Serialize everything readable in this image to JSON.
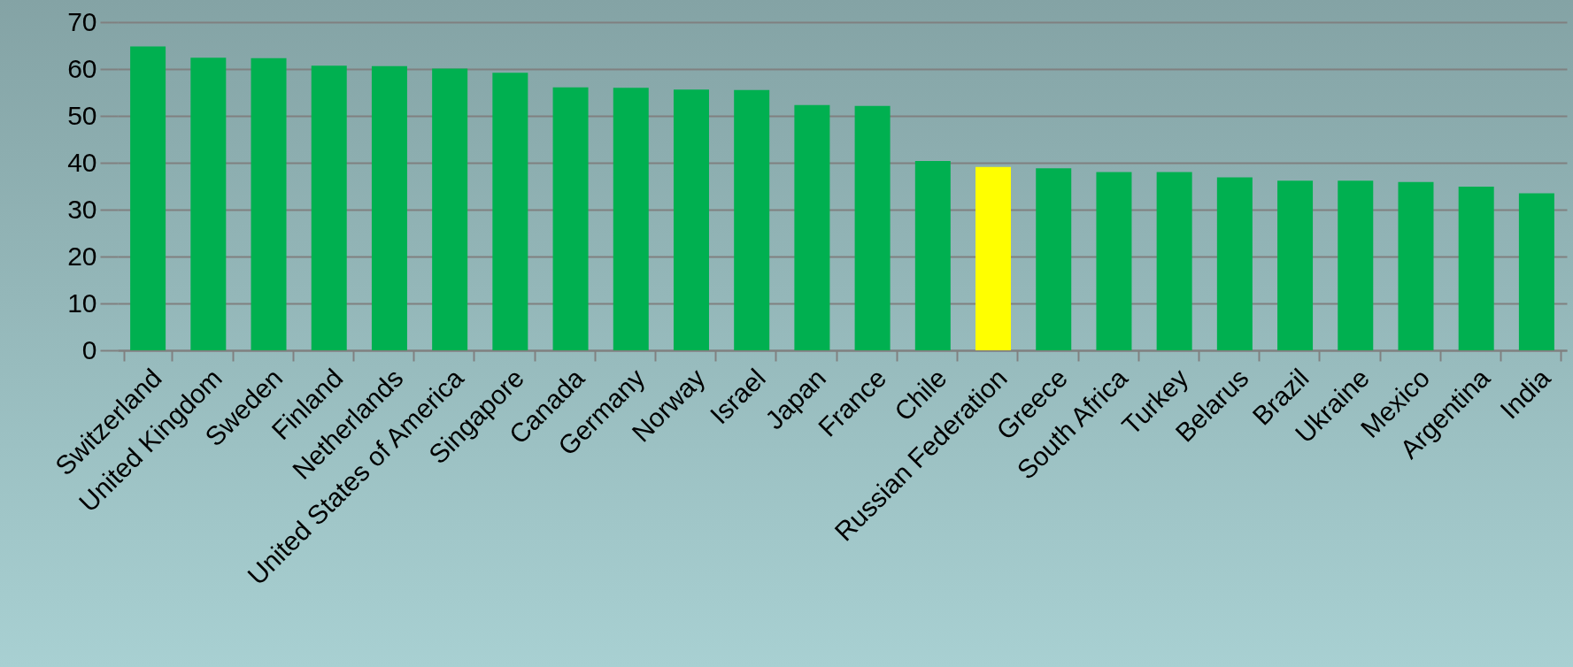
{
  "chart_data": {
    "type": "bar",
    "categories": [
      "Switzerland",
      "United Kingdom",
      "Sweden",
      "Finland",
      "Netherlands",
      "United States of America",
      "Singapore",
      "Canada",
      "Germany",
      "Norway",
      "Israel",
      "Japan",
      "France",
      "Chile",
      "Russian Federation",
      "Greece",
      "South Africa",
      "Turkey",
      "Belarus",
      "Brazil",
      "Ukraine",
      "Mexico",
      "Argentina",
      "India"
    ],
    "values": [
      64.8,
      62.4,
      62.3,
      60.7,
      60.6,
      60.1,
      59.2,
      56.1,
      56.0,
      55.6,
      55.5,
      52.3,
      52.1,
      40.4,
      39.1,
      38.8,
      38.0,
      38.0,
      36.9,
      36.2,
      36.2,
      35.9,
      34.9,
      33.5
    ],
    "colors": [
      "#00b050",
      "#00b050",
      "#00b050",
      "#00b050",
      "#00b050",
      "#00b050",
      "#00b050",
      "#00b050",
      "#00b050",
      "#00b050",
      "#00b050",
      "#00b050",
      "#00b050",
      "#00b050",
      "#ffff00",
      "#00b050",
      "#00b050",
      "#00b050",
      "#00b050",
      "#00b050",
      "#00b050",
      "#00b050",
      "#00b050",
      "#00b050"
    ],
    "ylim": [
      0,
      70
    ],
    "yticks": [
      0,
      10,
      20,
      30,
      40,
      50,
      60,
      70
    ],
    "grid": "y",
    "legend": false
  }
}
